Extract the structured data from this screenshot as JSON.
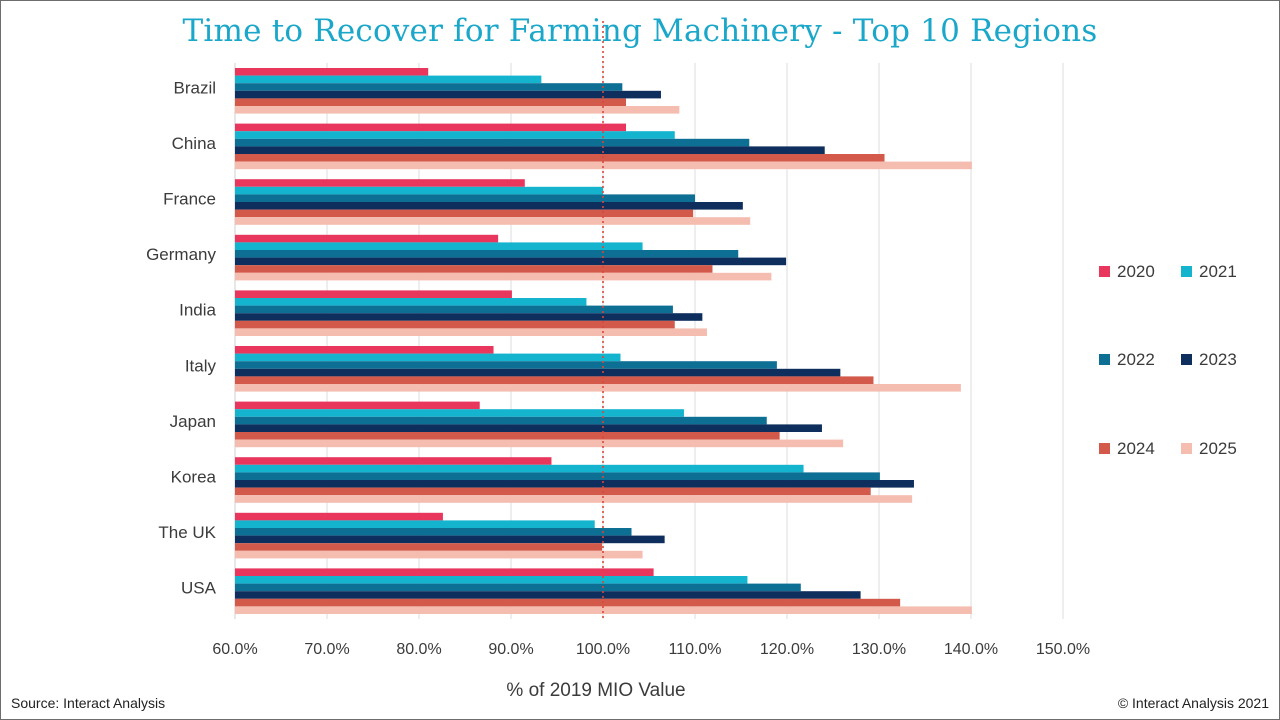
{
  "chart_data": {
    "type": "bar",
    "orientation": "horizontal",
    "title": "Time to Recover for Farming Machinery - Top 10 Regions",
    "xlabel": "% of 2019 MIO Value",
    "ylabel": "",
    "xlim": [
      60,
      150
    ],
    "x_ticks": [
      "60.0%",
      "70.0%",
      "80.0%",
      "90.0%",
      "100.0%",
      "110.0%",
      "120.0%",
      "130.0%",
      "140.0%",
      "150.0%"
    ],
    "reference_line": {
      "value": 100,
      "style": "dotted",
      "color": "#d9463b"
    },
    "grid": "vertical",
    "legend_position": "right",
    "categories": [
      "Brazil",
      "China",
      "France",
      "Germany",
      "India",
      "Italy",
      "Japan",
      "Korea",
      "The UK",
      "USA"
    ],
    "series": [
      {
        "name": "2020",
        "color": "#e8365d",
        "values": [
          81.0,
          102.5,
          91.5,
          88.6,
          90.1,
          88.1,
          86.6,
          94.4,
          82.6,
          105.5
        ]
      },
      {
        "name": "2021",
        "color": "#14b4cf",
        "values": [
          93.3,
          107.8,
          100.0,
          104.3,
          98.2,
          101.9,
          108.8,
          121.8,
          99.1,
          115.7
        ]
      },
      {
        "name": "2022",
        "color": "#0e6f94",
        "values": [
          102.1,
          115.9,
          110.0,
          114.7,
          107.6,
          118.9,
          117.8,
          130.1,
          103.1,
          121.5
        ]
      },
      {
        "name": "2023",
        "color": "#0e2f5e",
        "values": [
          106.3,
          124.1,
          115.2,
          119.9,
          110.8,
          125.8,
          123.8,
          133.8,
          106.7,
          128.0
        ]
      },
      {
        "name": "2024",
        "color": "#d35a4a",
        "values": [
          102.5,
          130.6,
          109.8,
          111.9,
          107.8,
          129.4,
          119.2,
          129.1,
          99.9,
          132.3
        ]
      },
      {
        "name": "2025",
        "color": "#f5bdb0",
        "values": [
          108.3,
          140.1,
          116.0,
          118.3,
          111.3,
          138.9,
          126.1,
          133.6,
          104.3,
          140.1
        ]
      }
    ]
  },
  "footer": {
    "source": "Source: Interact Analysis",
    "copyright": "© Interact Analysis 2021"
  }
}
